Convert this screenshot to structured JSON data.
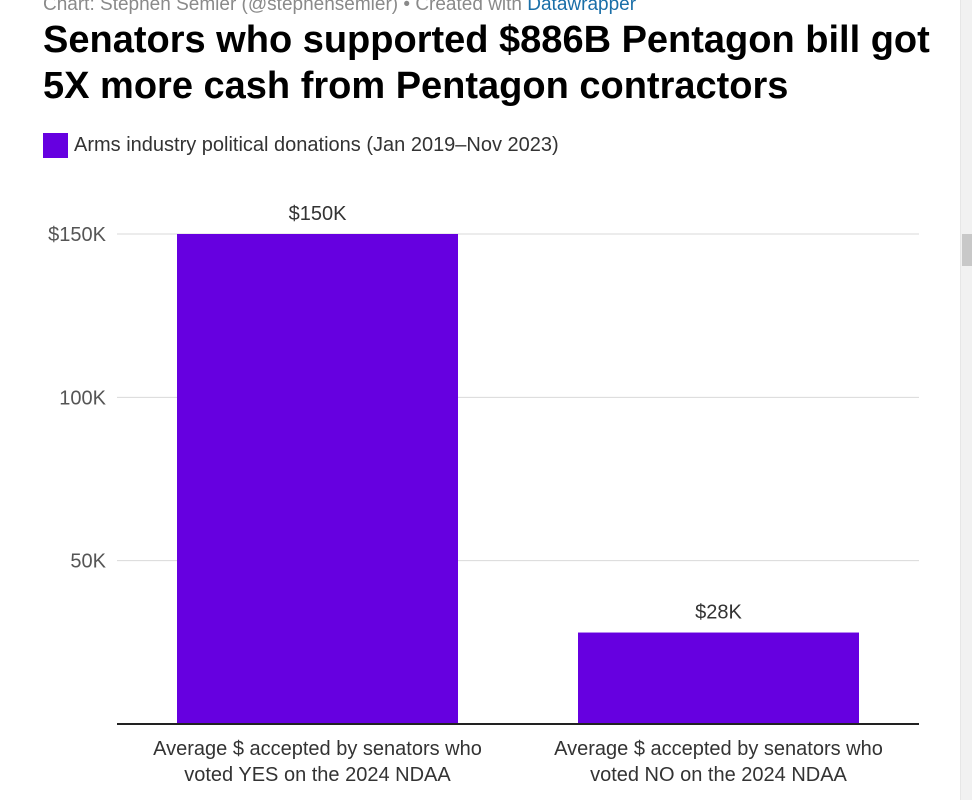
{
  "byline": {
    "prefix": "Chart: Stephen Semler (@stephensemler) • Created with ",
    "link": "Datawrapper"
  },
  "colors": {
    "bar": "#6600e0",
    "gridline": "#d9d9d9",
    "baseline": "#222222",
    "tick_label": "#555555",
    "value_label": "#333333",
    "category_label": "#333333"
  },
  "chart_data": {
    "type": "bar",
    "title": "Senators who supported $886B Pentagon bill got 5X more cash from Pentagon contractors",
    "legend": [
      "Arms industry political donations (Jan 2019–Nov 2023)"
    ],
    "legend_position": "top-left",
    "categories": [
      [
        "Average $ accepted by senators who",
        "voted YES on the 2024 NDAA"
      ],
      [
        "Average $ accepted by senators who",
        "voted NO on the 2024 NDAA"
      ]
    ],
    "values": [
      150000,
      28000
    ],
    "value_labels": [
      "$150K",
      "$28K"
    ],
    "ylim": [
      0,
      150000
    ],
    "yticks": [
      {
        "value": 150000,
        "label": "$150K"
      },
      {
        "value": 100000,
        "label": "100K"
      },
      {
        "value": 50000,
        "label": "50K"
      }
    ],
    "grid": true,
    "xlabel": "",
    "ylabel": ""
  }
}
